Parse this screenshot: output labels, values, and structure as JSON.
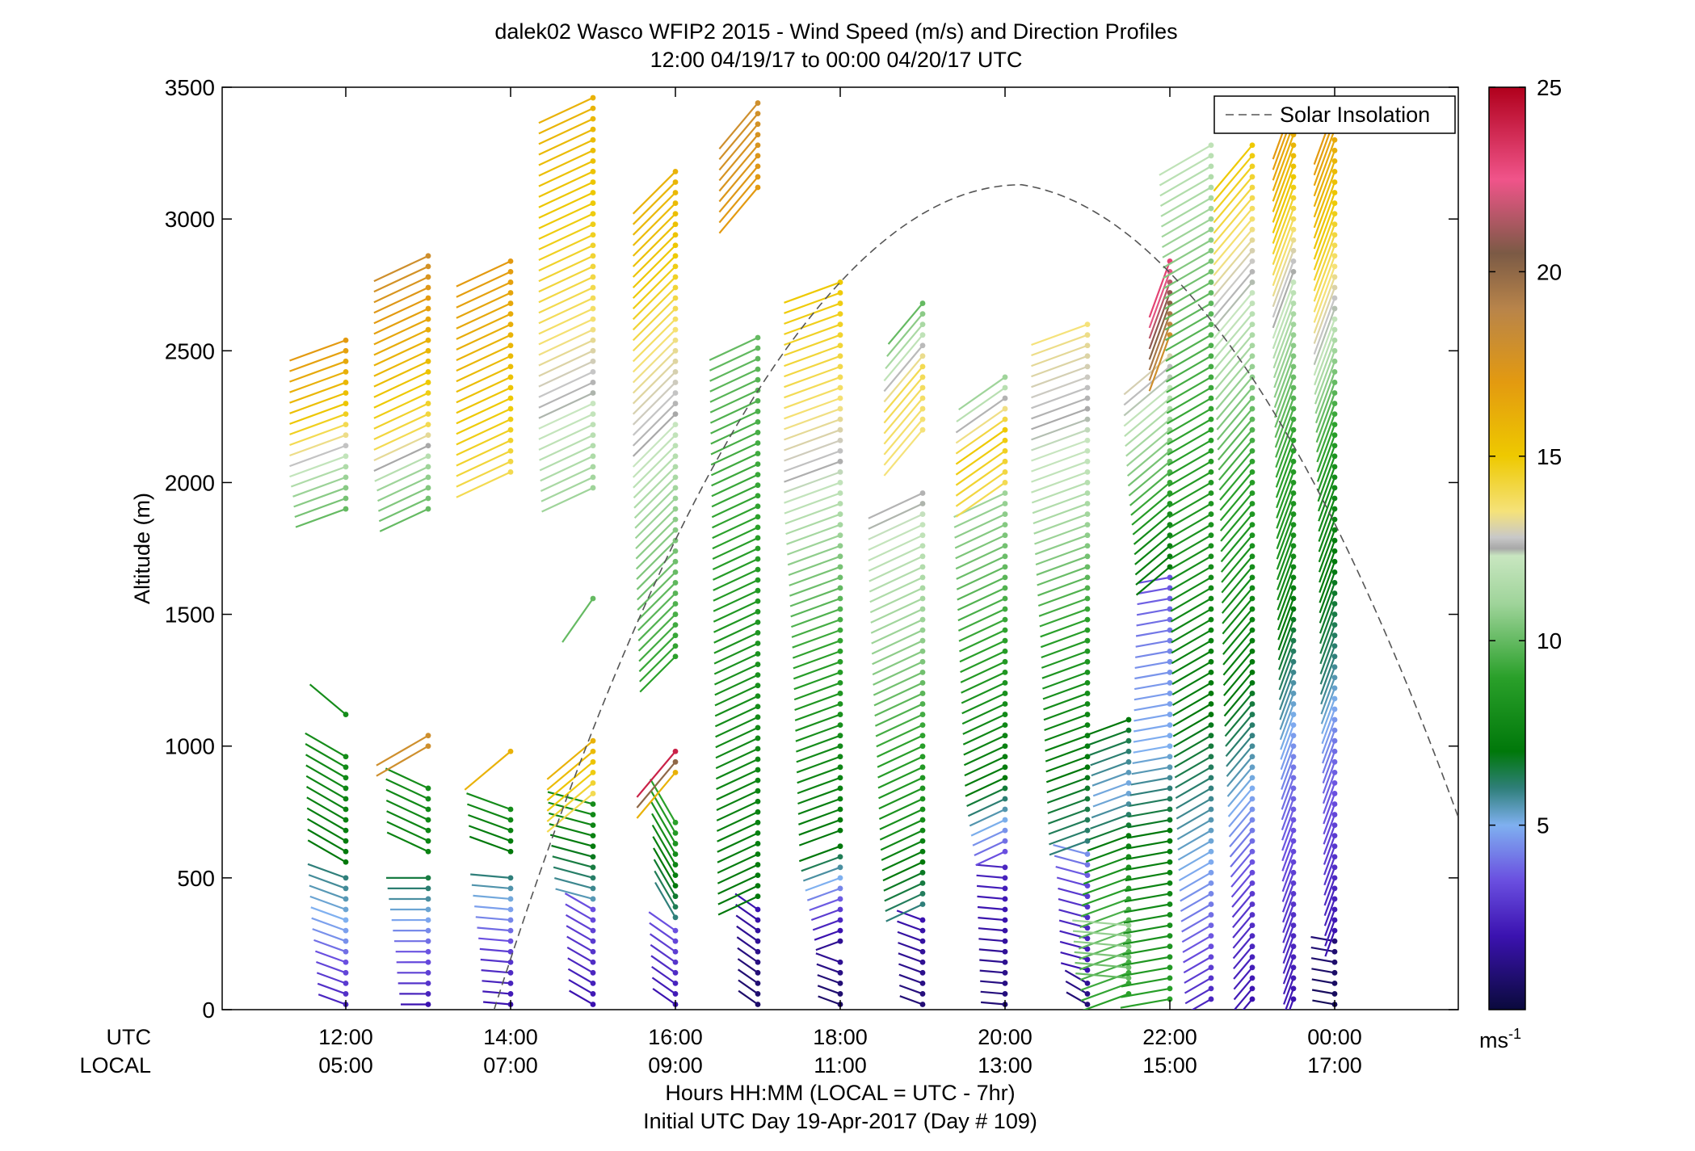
{
  "chart_data": {
    "type": "wind-profile",
    "title": "dalek02 Wasco WFIP2 2015 - Wind Speed (m/s) and Direction Profiles",
    "subtitle": "12:00 04/19/17 to 00:00 04/20/17  UTC",
    "ylabel": "Altitude (m)",
    "xlabel": "Hours HH:MM  (LOCAL = UTC - 7hr)",
    "xlabel2": "Initial UTC Day 19-Apr-2017 (Day # 109)",
    "row_label_utc": "UTC",
    "row_label_local": "LOCAL",
    "ylim": [
      0,
      3500
    ],
    "xlim_hours": [
      10.5,
      25.5
    ],
    "yticks": [
      0,
      500,
      1000,
      1500,
      2000,
      2500,
      3000,
      3500
    ],
    "ytick_labels": [
      "0",
      "500",
      "1000",
      "1500",
      "2000",
      "2500",
      "3000",
      "3500"
    ],
    "xticks_utc": [
      "12:00",
      "14:00",
      "16:00",
      "18:00",
      "20:00",
      "22:00",
      "00:00"
    ],
    "xticks_local": [
      "05:00",
      "07:00",
      "09:00",
      "11:00",
      "13:00",
      "15:00",
      "17:00"
    ],
    "xtick_hours": [
      12,
      14,
      16,
      18,
      20,
      22,
      24
    ],
    "colorbar": {
      "range": [
        0,
        25
      ],
      "ticks": [
        5,
        10,
        15,
        20,
        25
      ],
      "tick_labels": [
        "5",
        "10",
        "15",
        "20",
        "25"
      ],
      "unit_label": "ms-1",
      "stops": [
        {
          "v": 0,
          "c": "#0a0a3c"
        },
        {
          "v": 2,
          "c": "#3b12b0"
        },
        {
          "v": 3.5,
          "c": "#6a4fe0"
        },
        {
          "v": 5,
          "c": "#7fb0f0"
        },
        {
          "v": 6,
          "c": "#2f7f7a"
        },
        {
          "v": 7,
          "c": "#00780a"
        },
        {
          "v": 9,
          "c": "#2aa02a"
        },
        {
          "v": 11,
          "c": "#9fd49a"
        },
        {
          "v": 12.3,
          "c": "#c8e6c0"
        },
        {
          "v": 12.5,
          "c": "#a8a8a8"
        },
        {
          "v": 12.8,
          "c": "#c8c8c8"
        },
        {
          "v": 13.5,
          "c": "#f5e27a"
        },
        {
          "v": 15,
          "c": "#eec900"
        },
        {
          "v": 17,
          "c": "#e39a10"
        },
        {
          "v": 19,
          "c": "#b8844a"
        },
        {
          "v": 20.5,
          "c": "#7b5a45"
        },
        {
          "v": 22.5,
          "c": "#f0548a"
        },
        {
          "v": 25,
          "c": "#b0001c"
        }
      ]
    },
    "legend": {
      "label": "Solar Insolation",
      "position": "top-right"
    },
    "solar_insolation": {
      "rise_hour": 13.8,
      "peak_hour": 20.2,
      "peak_altitude": 3130,
      "end_hour": 25.5,
      "end_altitude": 730
    },
    "profiles": [
      {
        "hour": 12.0,
        "segments": [
          {
            "z0": 20,
            "z1": 520,
            "sp": [
              2.5,
              3,
              3.5,
              4.5,
              5,
              5.5,
              6
            ],
            "dir": 290
          },
          {
            "z0": 560,
            "z1": 990,
            "sp": [
              7,
              7.5,
              8
            ],
            "dir": 300
          },
          {
            "z0": 1120,
            "z1": 1120,
            "sp": [
              8
            ],
            "dir": 310
          },
          {
            "z0": 1900,
            "z1": 2550,
            "sp": [
              10,
              11,
              13,
              15,
              16,
              17
            ],
            "dir": 250
          }
        ]
      },
      {
        "hour": 13.0,
        "segments": [
          {
            "z0": 20,
            "z1": 500,
            "sp": [
              2,
              3,
              3.5,
              4.5,
              5.5,
              6.5
            ],
            "dir": 270
          },
          {
            "z0": 600,
            "z1": 840,
            "sp": [
              7.5,
              8
            ],
            "dir": 295
          },
          {
            "z0": 1000,
            "z1": 1040,
            "sp": [
              18
            ],
            "dir": 240
          },
          {
            "z0": 1900,
            "z1": 2860,
            "sp": [
              10,
              11,
              14,
              15,
              16,
              17,
              18
            ],
            "dir": 245
          }
        ]
      },
      {
        "hour": 14.0,
        "segments": [
          {
            "z0": 20,
            "z1": 500,
            "sp": [
              2,
              2.5,
              3,
              4,
              5,
              6
            ],
            "dir": 275
          },
          {
            "z0": 600,
            "z1": 780,
            "sp": [
              7,
              8
            ],
            "dir": 290
          },
          {
            "z0": 980,
            "z1": 980,
            "sp": [
              16
            ],
            "dir": 230
          },
          {
            "z0": 2040,
            "z1": 2860,
            "sp": [
              14,
              15,
              16,
              17
            ],
            "dir": 245
          }
        ]
      },
      {
        "hour": 15.0,
        "segments": [
          {
            "z0": 20,
            "z1": 380,
            "sp": [
              2,
              2.5,
              3,
              3.5
            ],
            "dir": 300
          },
          {
            "z0": 420,
            "z1": 780,
            "sp": [
              5.5,
              6.5,
              7.5,
              8
            ],
            "dir": 285
          },
          {
            "z0": 820,
            "z1": 1040,
            "sp": [
              14,
              15,
              16
            ],
            "dir": 230
          },
          {
            "z0": 1560,
            "z1": 1560,
            "sp": [
              10
            ],
            "dir": 215
          },
          {
            "z0": 1980,
            "z1": 3470,
            "sp": [
              11,
              12.5,
              14,
              15,
              16
            ],
            "dir": 245
          }
        ]
      },
      {
        "hour": 16.0,
        "segments": [
          {
            "z0": 20,
            "z1": 320,
            "sp": [
              2,
              2.5,
              3,
              3.5
            ],
            "dir": 305
          },
          {
            "z0": 350,
            "z1": 740,
            "sp": [
              6,
              7,
              8,
              9
            ],
            "dir": 330
          },
          {
            "z0": 900,
            "z1": 980,
            "sp": [
              16,
              24
            ],
            "dir": 220
          },
          {
            "z0": 1340,
            "z1": 3180,
            "sp": [
              9,
              10,
              11,
              12.5,
              13.5,
              15,
              16
            ],
            "dir": 225
          }
        ]
      },
      {
        "hour": 17.0,
        "segments": [
          {
            "z0": 20,
            "z1": 390,
            "sp": [
              0.8,
              1,
              1.5,
              2
            ],
            "dir": 305
          },
          {
            "z0": 430,
            "z1": 2580,
            "sp": [
              7,
              8,
              9,
              10
            ],
            "dir": 245
          },
          {
            "z0": 3120,
            "z1": 3470,
            "sp": [
              17,
              18
            ],
            "dir": 220
          }
        ]
      },
      {
        "hour": 18.0,
        "segments": [
          {
            "z0": 20,
            "z1": 200,
            "sp": [
              0.8,
              1,
              1.5
            ],
            "dir": 290
          },
          {
            "z0": 260,
            "z1": 640,
            "sp": [
              1.5,
              3,
              5,
              7
            ],
            "dir": 250
          },
          {
            "z0": 680,
            "z1": 2760,
            "sp": [
              7,
              8,
              9,
              10.5,
              12.5,
              14,
              15
            ],
            "dir": 250
          }
        ]
      },
      {
        "hour": 19.0,
        "segments": [
          {
            "z0": 20,
            "z1": 360,
            "sp": [
              1,
              1.5,
              2
            ],
            "dir": 290
          },
          {
            "z0": 400,
            "z1": 1980,
            "sp": [
              6,
              8,
              9,
              10.5,
              11.5,
              12.6
            ],
            "dir": 245
          },
          {
            "z0": 2200,
            "z1": 2680,
            "sp": [
              13.5,
              14,
              10
            ],
            "dir": 220
          }
        ]
      },
      {
        "hour": 20.0,
        "segments": [
          {
            "z0": 20,
            "z1": 560,
            "sp": [
              1,
              1.5,
              2,
              2.5
            ],
            "dir": 275
          },
          {
            "z0": 600,
            "z1": 1980,
            "sp": [
              3.5,
              7,
              8,
              9,
              10,
              11
            ],
            "dir": 245
          },
          {
            "z0": 2000,
            "z1": 2420,
            "sp": [
              14,
              15,
              11
            ],
            "dir": 235
          }
        ]
      },
      {
        "hour": 21.0,
        "segments": [
          {
            "z0": 20,
            "z1": 130,
            "sp": [
              1,
              1.5
            ],
            "dir": 300
          },
          {
            "z0": 150,
            "z1": 600,
            "sp": [
              2,
              2.5,
              3,
              4.5
            ],
            "dir": 285
          },
          {
            "z0": 640,
            "z1": 2600,
            "sp": [
              6,
              7,
              8,
              9,
              10.5,
              12,
              12.6,
              13.5
            ],
            "dir": 250
          }
        ]
      },
      {
        "hour": 21.5,
        "segments": [
          {
            "z0": 60,
            "z1": 1120,
            "sp": [
              9,
              10,
              8,
              5,
              7
            ],
            "dir": 250
          },
          {
            "z0": 120,
            "z1": 320,
            "sp": [
              10,
              11
            ],
            "dir": 275
          }
        ]
      },
      {
        "hour": 22.0,
        "segments": [
          {
            "z0": 40,
            "z1": 1640,
            "sp": [
              9,
              8,
              7,
              5,
              4.5,
              3.5
            ],
            "dir": 260
          },
          {
            "z0": 1680,
            "z1": 2500,
            "sp": [
              7,
              8,
              10,
              11.5,
              13
            ],
            "dir": 230
          },
          {
            "z0": 2560,
            "z1": 2860,
            "sp": [
              18,
              23
            ],
            "dir": 200
          }
        ]
      },
      {
        "hour": 22.5,
        "segments": [
          {
            "z0": 40,
            "z1": 3300,
            "sp": [
              2.5,
              5,
              7,
              8,
              9,
              10,
              12
            ],
            "dir": 240
          }
        ]
      },
      {
        "hour": 23.0,
        "segments": [
          {
            "z0": 40,
            "z1": 3300,
            "sp": [
              2,
              3,
              5,
              7,
              8,
              9,
              11,
              13,
              15
            ],
            "dir": 220
          }
        ]
      },
      {
        "hour": 23.5,
        "segments": [
          {
            "z0": 40,
            "z1": 3450,
            "sp": [
              2,
              3,
              4,
              6,
              8,
              9,
              11,
              14,
              17
            ],
            "dir": 200
          }
        ]
      },
      {
        "hour": 24.0,
        "segments": [
          {
            "z0": 20,
            "z1": 280,
            "sp": [
              0.5,
              1
            ],
            "dir": 280
          },
          {
            "z0": 300,
            "z1": 3450,
            "sp": [
              2,
              3,
              4,
              6,
              7,
              8,
              10,
              13,
              15,
              17
            ],
            "dir": 200
          }
        ]
      }
    ]
  }
}
